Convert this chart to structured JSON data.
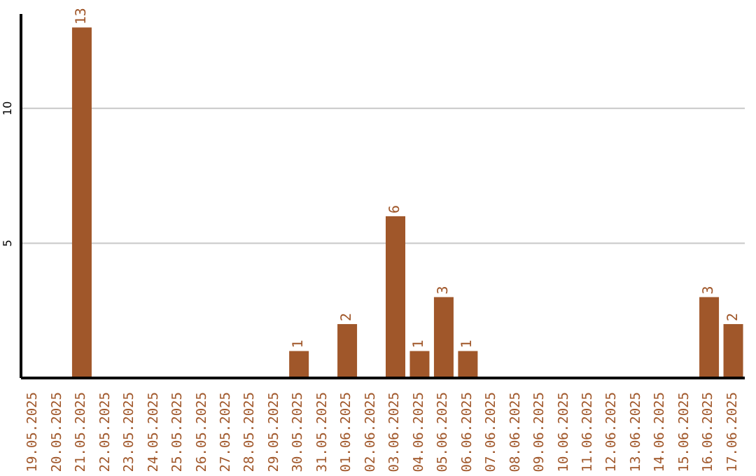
{
  "chart_data": {
    "type": "bar",
    "categories": [
      "19.05.2025",
      "20.05.2025",
      "21.05.2025",
      "22.05.2025",
      "23.05.2025",
      "24.05.2025",
      "25.05.2025",
      "26.05.2025",
      "27.05.2025",
      "28.05.2025",
      "29.05.2025",
      "30.05.2025",
      "31.05.2025",
      "01.06.2025",
      "02.06.2025",
      "03.06.2025",
      "04.06.2025",
      "05.06.2025",
      "06.06.2025",
      "07.06.2025",
      "08.06.2025",
      "09.06.2025",
      "10.06.2025",
      "11.06.2025",
      "12.06.2025",
      "13.06.2025",
      "14.06.2025",
      "15.06.2025",
      "16.06.2025",
      "17.06.2025"
    ],
    "values": [
      0,
      0,
      13,
      0,
      0,
      0,
      0,
      0,
      0,
      0,
      0,
      1,
      0,
      2,
      0,
      6,
      1,
      3,
      1,
      0,
      0,
      0,
      0,
      0,
      0,
      0,
      0,
      0,
      3,
      2
    ],
    "value_labels": [
      null,
      null,
      "13",
      null,
      null,
      null,
      null,
      null,
      null,
      null,
      null,
      "1",
      null,
      "2",
      null,
      "6",
      "1",
      "3",
      "1",
      null,
      null,
      null,
      null,
      null,
      null,
      null,
      null,
      null,
      "3",
      "2"
    ],
    "color": "#a0572a",
    "ylim": [
      0,
      13.5
    ],
    "yticks": [
      5,
      10
    ],
    "grid": "y"
  }
}
